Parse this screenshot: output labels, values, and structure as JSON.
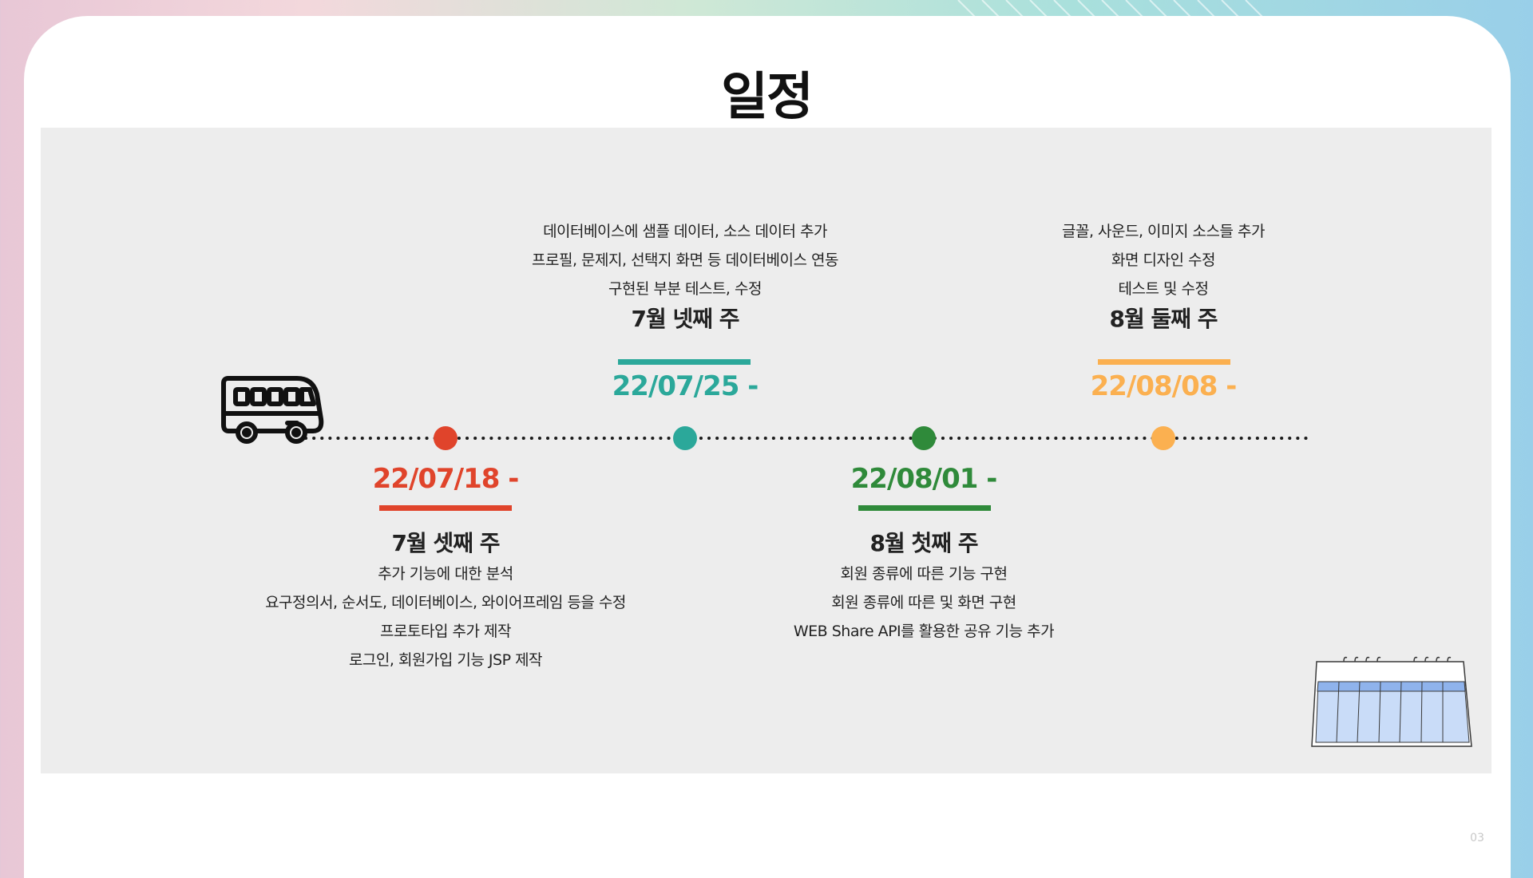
{
  "title": "일정",
  "page_number": "03",
  "colors": {
    "red": "#e0442b",
    "teal": "#2ba89a",
    "green": "#2f8a3a",
    "orange": "#fbb050",
    "panel": "#ededed"
  },
  "milestones": [
    {
      "date": "22/07/18 -",
      "week": "7월 셋째 주",
      "color": "#e0442b",
      "items": [
        "추가 기능에 대한 분석",
        "요구정의서, 순서도, 데이터베이스, 와이어프레임 등을 수정",
        "프로토타입 추가 제작",
        "로그인, 회원가입 기능 JSP 제작"
      ]
    },
    {
      "date": "22/07/25 -",
      "week": "7월 넷째 주",
      "color": "#2ba89a",
      "items": [
        "데이터베이스에 샘플 데이터, 소스 데이터 추가",
        "프로필, 문제지, 선택지 화면 등 데이터베이스 연동",
        "구현된 부분 테스트, 수정"
      ]
    },
    {
      "date": "22/08/01 -",
      "week": "8월 첫째 주",
      "color": "#2f8a3a",
      "items": [
        "회원 종류에 따른 기능 구현",
        "회원 종류에 따른 및 화면 구현",
        "WEB Share API를 활용한 공유 기능 추가"
      ]
    },
    {
      "date": "22/08/08 -",
      "week": "8월 둘째 주",
      "color": "#fbb050",
      "items": [
        "글꼴, 사운드, 이미지 소스들 추가",
        "화면 디자인 수정",
        "테스트 및 수정"
      ]
    }
  ],
  "icons": {
    "bus": "bus-icon",
    "calendar": "calendar-icon"
  }
}
